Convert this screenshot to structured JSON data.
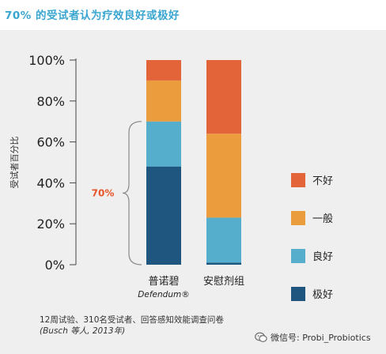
{
  "heading": "70% 的受试者认为疗效良好或极好",
  "chart_data": {
    "type": "bar",
    "stacked": true,
    "categories": [
      "普诺碧",
      "安慰剂组"
    ],
    "category_sublabels": [
      "Defendum®",
      ""
    ],
    "ylabel": "受试者百分比",
    "ylim": [
      0,
      100
    ],
    "yticks": [
      "0%",
      "20%",
      "40%",
      "60%",
      "80%",
      "100%"
    ],
    "series": [
      {
        "name": "极好",
        "color": "#1f5680",
        "values": [
          48,
          1
        ]
      },
      {
        "name": "良好",
        "color": "#55aecb",
        "values": [
          22,
          22
        ]
      },
      {
        "name": "一般",
        "color": "#eb9c3c",
        "values": [
          20,
          41
        ]
      },
      {
        "name": "不好",
        "color": "#e4643a",
        "values": [
          10,
          36
        ]
      }
    ],
    "bracket": {
      "label": "70%",
      "from": 0,
      "to": 70
    },
    "legend_position": "right"
  },
  "footnote": {
    "line1": "12周试验、310名受试者、回答感知效能调查问卷",
    "line2": "(Busch 等人, 2013年)"
  },
  "watermark": {
    "text": "微信号: Probi_Probiotics",
    "icon": "wechat-icon"
  }
}
